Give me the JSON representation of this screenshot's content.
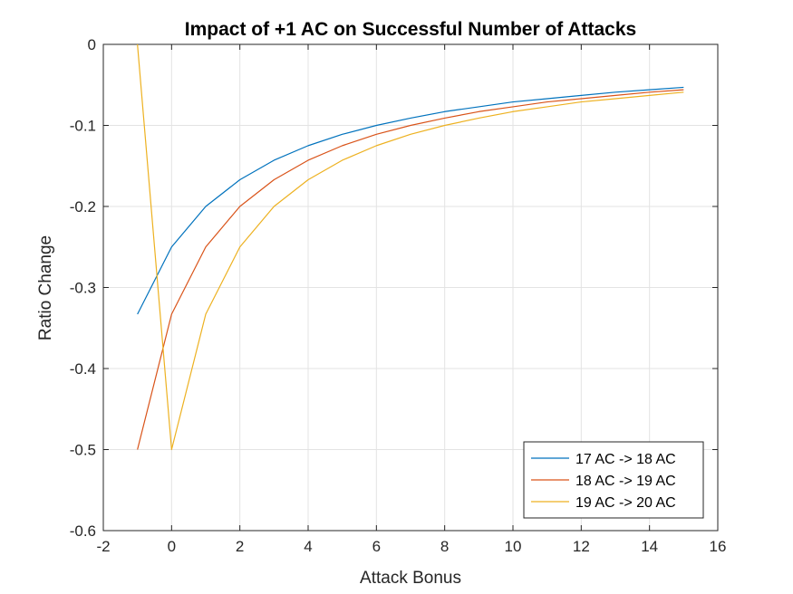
{
  "chart_data": {
    "type": "line",
    "title": "Impact of +1 AC on Successful Number of Attacks",
    "xlabel": "Attack Bonus",
    "ylabel": "Ratio Change",
    "xlim": [
      -2,
      16
    ],
    "ylim": [
      -0.6,
      0
    ],
    "xticks": [
      -2,
      0,
      2,
      4,
      6,
      8,
      10,
      12,
      14,
      16
    ],
    "xtick_labels": [
      "-2",
      "0",
      "2",
      "4",
      "6",
      "8",
      "10",
      "12",
      "14",
      "16"
    ],
    "yticks": [
      0,
      -0.1,
      -0.2,
      -0.3,
      -0.4,
      -0.5,
      -0.6
    ],
    "ytick_labels": [
      "0",
      "-0.1",
      "-0.2",
      "-0.3",
      "-0.4",
      "-0.5",
      "-0.6"
    ],
    "grid": true,
    "legend_position": "bottom-right",
    "x": [
      -1,
      0,
      1,
      2,
      3,
      4,
      5,
      6,
      7,
      8,
      9,
      10,
      11,
      12,
      13,
      14,
      15
    ],
    "series": [
      {
        "name": "17 AC -> 18 AC",
        "color": "#0072BD",
        "values": [
          -0.333,
          -0.25,
          -0.2,
          -0.167,
          -0.143,
          -0.125,
          -0.111,
          -0.1,
          -0.091,
          -0.083,
          -0.077,
          -0.071,
          -0.067,
          -0.063,
          -0.059,
          -0.056,
          -0.053
        ]
      },
      {
        "name": "18 AC -> 19 AC",
        "color": "#D95319",
        "values": [
          -0.5,
          -0.333,
          -0.25,
          -0.2,
          -0.167,
          -0.143,
          -0.125,
          -0.111,
          -0.1,
          -0.091,
          -0.083,
          -0.077,
          -0.071,
          -0.067,
          -0.063,
          -0.059,
          -0.056
        ]
      },
      {
        "name": "19 AC -> 20 AC",
        "color": "#EDB120",
        "values": [
          0,
          -0.5,
          -0.333,
          -0.25,
          -0.2,
          -0.167,
          -0.143,
          -0.125,
          -0.111,
          -0.1,
          -0.091,
          -0.083,
          -0.077,
          -0.071,
          -0.067,
          -0.063,
          -0.059
        ]
      }
    ]
  }
}
